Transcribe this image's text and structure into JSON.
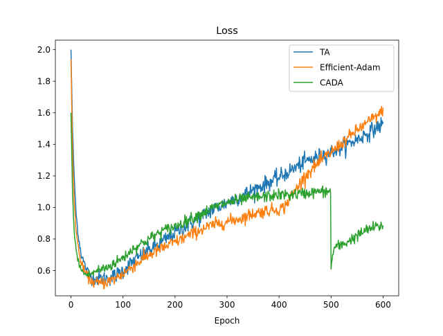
{
  "chart_data": {
    "type": "line",
    "title": "Loss",
    "xlabel": "Epoch",
    "ylabel": "",
    "xlim": [
      -30,
      630
    ],
    "ylim": [
      0.44,
      2.06
    ],
    "xticks": [
      0,
      100,
      200,
      300,
      400,
      500,
      600
    ],
    "yticks": [
      0.6,
      0.8,
      1.0,
      1.2,
      1.4,
      1.6,
      1.8,
      2.0
    ],
    "xtick_labels": [
      "0",
      "100",
      "200",
      "300",
      "400",
      "500",
      "600"
    ],
    "ytick_labels": [
      "0.6",
      "0.8",
      "1.0",
      "1.2",
      "1.4",
      "1.6",
      "1.8",
      "2.0"
    ],
    "grid": false,
    "legend_position": "top-right",
    "series": [
      {
        "name": "TA",
        "color": "#1f77b4",
        "noise": 0.025,
        "x": [
          0,
          3,
          6,
          10,
          15,
          20,
          30,
          40,
          50,
          60,
          70,
          80,
          100,
          120,
          150,
          175,
          200,
          225,
          250,
          275,
          300,
          325,
          350,
          375,
          400,
          425,
          450,
          475,
          500,
          525,
          550,
          575,
          600
        ],
        "y": [
          2.0,
          1.5,
          1.2,
          0.95,
          0.8,
          0.7,
          0.6,
          0.56,
          0.55,
          0.55,
          0.55,
          0.56,
          0.6,
          0.66,
          0.73,
          0.78,
          0.84,
          0.89,
          0.94,
          0.99,
          1.03,
          1.07,
          1.11,
          1.15,
          1.19,
          1.24,
          1.29,
          1.32,
          1.35,
          1.39,
          1.43,
          1.48,
          1.53
        ]
      },
      {
        "name": "Efficient-Adam",
        "color": "#ff7f0e",
        "noise": 0.02,
        "x": [
          0,
          3,
          6,
          10,
          15,
          20,
          30,
          40,
          50,
          60,
          70,
          80,
          100,
          120,
          150,
          175,
          200,
          225,
          250,
          275,
          300,
          325,
          350,
          375,
          400,
          410,
          425,
          450,
          475,
          500,
          525,
          550,
          575,
          600
        ],
        "y": [
          1.94,
          1.35,
          1.05,
          0.85,
          0.72,
          0.64,
          0.57,
          0.53,
          0.52,
          0.52,
          0.53,
          0.54,
          0.58,
          0.63,
          0.7,
          0.74,
          0.78,
          0.82,
          0.86,
          0.89,
          0.91,
          0.93,
          0.96,
          0.98,
          0.99,
          1.0,
          1.08,
          1.2,
          1.28,
          1.35,
          1.42,
          1.49,
          1.55,
          1.61
        ]
      },
      {
        "name": "CADA",
        "color": "#2ca02c",
        "noise": 0.018,
        "x": [
          0,
          3,
          6,
          10,
          15,
          20,
          30,
          40,
          50,
          60,
          70,
          80,
          100,
          120,
          150,
          175,
          200,
          225,
          250,
          275,
          300,
          325,
          350,
          375,
          400,
          425,
          450,
          475,
          499,
          500,
          505,
          510,
          520,
          530,
          540,
          550,
          560,
          570,
          580,
          590,
          600
        ],
        "y": [
          1.6,
          1.1,
          0.85,
          0.72,
          0.65,
          0.6,
          0.57,
          0.58,
          0.6,
          0.61,
          0.62,
          0.64,
          0.68,
          0.74,
          0.8,
          0.85,
          0.88,
          0.92,
          0.96,
          1.0,
          1.03,
          1.05,
          1.06,
          1.07,
          1.08,
          1.08,
          1.09,
          1.1,
          1.1,
          0.62,
          0.74,
          0.75,
          0.76,
          0.78,
          0.8,
          0.82,
          0.84,
          0.86,
          0.87,
          0.88,
          0.88
        ]
      }
    ]
  }
}
